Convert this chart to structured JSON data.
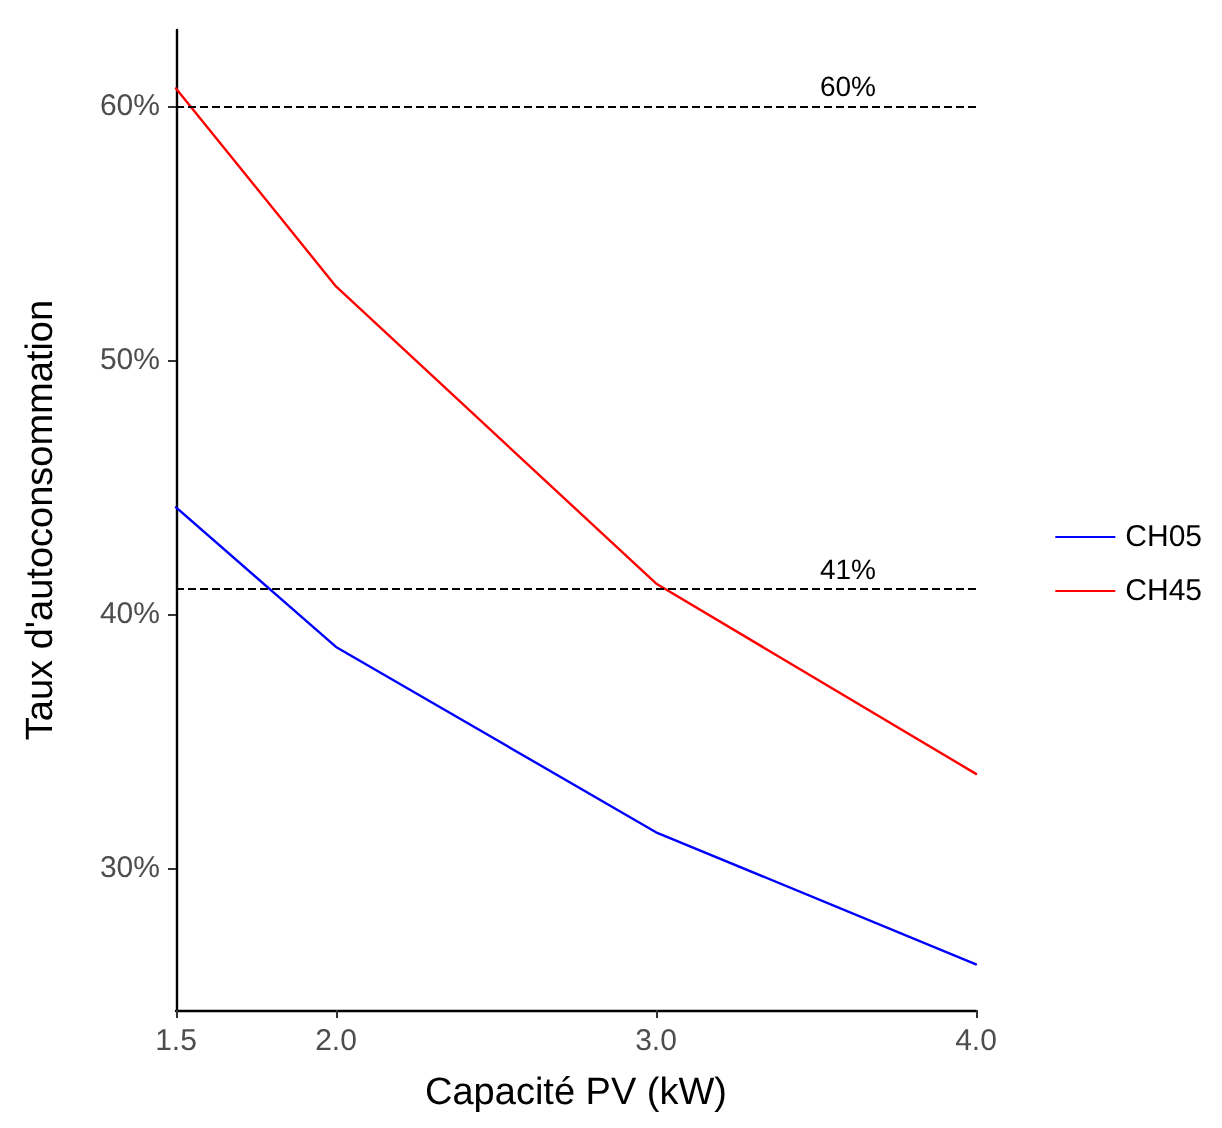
{
  "chart_data": {
    "type": "line",
    "xlabel": "Capacité PV (kW)",
    "ylabel": "Taux d'autoconsommation",
    "x": [
      1.5,
      2.0,
      3.0,
      4.0
    ],
    "series": [
      {
        "name": "CH05",
        "color": "#0000ff",
        "values": [
          44.2,
          38.7,
          31.4,
          26.2
        ]
      },
      {
        "name": "CH45",
        "color": "#ff0000",
        "values": [
          60.7,
          52.9,
          41.2,
          33.7
        ]
      }
    ],
    "xlim": [
      1.5,
      4.0
    ],
    "xticks": [
      {
        "value": 1.5,
        "label": "1.5"
      },
      {
        "value": 2,
        "label": "2.0"
      },
      {
        "value": 3,
        "label": "3.0"
      },
      {
        "value": 4,
        "label": "4.0"
      }
    ],
    "ylim": [
      24.4,
      63
    ],
    "yticks": [
      {
        "value": 30,
        "label": "30%"
      },
      {
        "value": 40,
        "label": "40%"
      },
      {
        "value": 50,
        "label": "50%"
      },
      {
        "value": 60,
        "label": "60%"
      }
    ],
    "ref_lines": [
      {
        "axis": "y",
        "value": 60,
        "label": "60%",
        "color": "#000000",
        "line_style": "dashed"
      },
      {
        "axis": "y",
        "value": 41,
        "label": "41%",
        "color": "#000000",
        "line_style": "dashed"
      }
    ],
    "grid": false,
    "legend": "right",
    "marker": "none",
    "line_style": "solid"
  }
}
